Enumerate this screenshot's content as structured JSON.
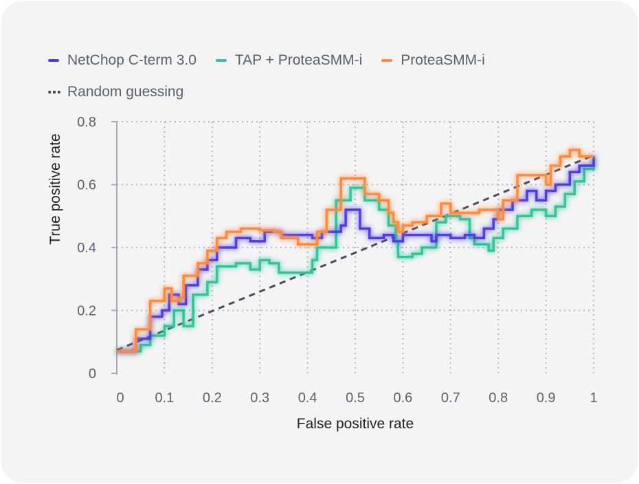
{
  "chart_data": {
    "type": "line",
    "title": "",
    "xlabel": "False positive rate",
    "ylabel": "True positive rate",
    "xlim": [
      0,
      1
    ],
    "ylim": [
      0,
      0.8
    ],
    "xticks": [
      "0",
      "0.1",
      "0.2",
      "0.3",
      "0.4",
      "0.5",
      "0.6",
      "0.7",
      "0.8",
      "0.9",
      "1"
    ],
    "yticks": [
      "0",
      "0.2",
      "0.4",
      "0.6",
      "0.8"
    ],
    "grid": true,
    "legend_placement": "top-left",
    "series": [
      {
        "name": "NetChop C-term 3.0",
        "color": "#4f3ee0",
        "step": true,
        "points": [
          [
            0,
            0.07
          ],
          [
            0.04,
            0.11
          ],
          [
            0.07,
            0.18
          ],
          [
            0.095,
            0.2
          ],
          [
            0.11,
            0.25
          ],
          [
            0.13,
            0.22
          ],
          [
            0.145,
            0.28
          ],
          [
            0.17,
            0.33
          ],
          [
            0.19,
            0.36
          ],
          [
            0.21,
            0.4
          ],
          [
            0.25,
            0.43
          ],
          [
            0.28,
            0.42
          ],
          [
            0.31,
            0.45
          ],
          [
            0.345,
            0.44
          ],
          [
            0.39,
            0.44
          ],
          [
            0.41,
            0.43
          ],
          [
            0.43,
            0.45
          ],
          [
            0.47,
            0.47
          ],
          [
            0.48,
            0.52
          ],
          [
            0.51,
            0.46
          ],
          [
            0.53,
            0.43
          ],
          [
            0.56,
            0.44
          ],
          [
            0.58,
            0.42
          ],
          [
            0.6,
            0.44
          ],
          [
            0.66,
            0.42
          ],
          [
            0.67,
            0.44
          ],
          [
            0.7,
            0.43
          ],
          [
            0.73,
            0.44
          ],
          [
            0.75,
            0.43
          ],
          [
            0.77,
            0.46
          ],
          [
            0.79,
            0.49
          ],
          [
            0.8,
            0.52
          ],
          [
            0.83,
            0.55
          ],
          [
            0.86,
            0.58
          ],
          [
            0.88,
            0.55
          ],
          [
            0.9,
            0.58
          ],
          [
            0.92,
            0.6
          ],
          [
            0.95,
            0.64
          ],
          [
            0.97,
            0.66
          ],
          [
            1,
            0.69
          ]
        ]
      },
      {
        "name": "TAP + ProteaSMM-i",
        "color": "#33c49b",
        "step": true,
        "points": [
          [
            0,
            0.07
          ],
          [
            0.05,
            0.09
          ],
          [
            0.07,
            0.12
          ],
          [
            0.1,
            0.15
          ],
          [
            0.12,
            0.2
          ],
          [
            0.14,
            0.15
          ],
          [
            0.16,
            0.25
          ],
          [
            0.19,
            0.29
          ],
          [
            0.21,
            0.34
          ],
          [
            0.25,
            0.35
          ],
          [
            0.28,
            0.33
          ],
          [
            0.3,
            0.36
          ],
          [
            0.32,
            0.35
          ],
          [
            0.34,
            0.32
          ],
          [
            0.4,
            0.32
          ],
          [
            0.41,
            0.36
          ],
          [
            0.42,
            0.4
          ],
          [
            0.46,
            0.55
          ],
          [
            0.49,
            0.59
          ],
          [
            0.52,
            0.55
          ],
          [
            0.55,
            0.52
          ],
          [
            0.57,
            0.47
          ],
          [
            0.585,
            0.42
          ],
          [
            0.59,
            0.37
          ],
          [
            0.62,
            0.38
          ],
          [
            0.64,
            0.4
          ],
          [
            0.67,
            0.48
          ],
          [
            0.69,
            0.5
          ],
          [
            0.72,
            0.49
          ],
          [
            0.74,
            0.43
          ],
          [
            0.75,
            0.41
          ],
          [
            0.78,
            0.39
          ],
          [
            0.79,
            0.43
          ],
          [
            0.81,
            0.46
          ],
          [
            0.84,
            0.5
          ],
          [
            0.87,
            0.52
          ],
          [
            0.9,
            0.5
          ],
          [
            0.92,
            0.53
          ],
          [
            0.94,
            0.57
          ],
          [
            0.96,
            0.61
          ],
          [
            0.98,
            0.65
          ],
          [
            1,
            0.69
          ]
        ]
      },
      {
        "name": "ProteaSMM-i",
        "color": "#ff8a3d",
        "step": true,
        "points": [
          [
            0,
            0.07
          ],
          [
            0.04,
            0.14
          ],
          [
            0.07,
            0.23
          ],
          [
            0.1,
            0.27
          ],
          [
            0.115,
            0.23
          ],
          [
            0.13,
            0.24
          ],
          [
            0.14,
            0.31
          ],
          [
            0.17,
            0.35
          ],
          [
            0.19,
            0.39
          ],
          [
            0.21,
            0.43
          ],
          [
            0.23,
            0.45
          ],
          [
            0.26,
            0.46
          ],
          [
            0.3,
            0.455
          ],
          [
            0.33,
            0.45
          ],
          [
            0.345,
            0.43
          ],
          [
            0.38,
            0.41
          ],
          [
            0.42,
            0.45
          ],
          [
            0.44,
            0.52
          ],
          [
            0.47,
            0.62
          ],
          [
            0.5,
            0.62
          ],
          [
            0.52,
            0.57
          ],
          [
            0.55,
            0.55
          ],
          [
            0.57,
            0.51
          ],
          [
            0.58,
            0.48
          ],
          [
            0.59,
            0.45
          ],
          [
            0.6,
            0.47
          ],
          [
            0.62,
            0.48
          ],
          [
            0.65,
            0.5
          ],
          [
            0.68,
            0.54
          ],
          [
            0.7,
            0.51
          ],
          [
            0.74,
            0.51
          ],
          [
            0.76,
            0.52
          ],
          [
            0.8,
            0.49
          ],
          [
            0.81,
            0.55
          ],
          [
            0.84,
            0.63
          ],
          [
            0.88,
            0.63
          ],
          [
            0.9,
            0.6
          ],
          [
            0.91,
            0.66
          ],
          [
            0.93,
            0.69
          ],
          [
            0.95,
            0.71
          ],
          [
            0.97,
            0.69
          ],
          [
            1,
            0.69
          ]
        ]
      },
      {
        "name": "Random guessing",
        "color": "#4a4a60",
        "dashed": true,
        "points": [
          [
            0,
            0.074
          ],
          [
            1,
            0.693
          ]
        ]
      }
    ]
  }
}
